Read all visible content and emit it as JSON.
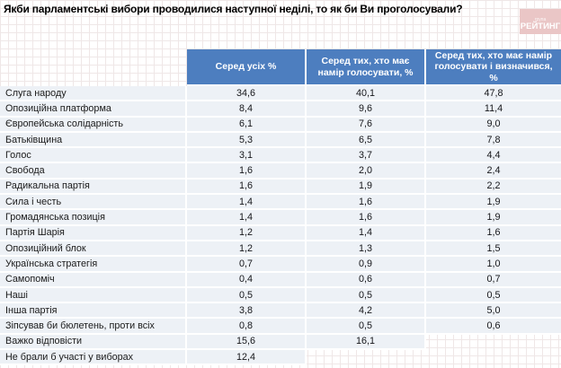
{
  "page": {
    "title": "Якби парламентські вибори проводилися наступної неділі, то як би Ви проголосували?",
    "logo": {
      "small_text": "група",
      "text": "РЕЙТИНГ"
    }
  },
  "colors": {
    "header_bg": "#4d7ebf",
    "row_bg": "#edf1f6",
    "logo_bg": "#eac6c6",
    "header_text": "#ffffff"
  },
  "chart_data": {
    "type": "table",
    "title": "Якби парламентські вибори проводилися наступної неділі, то як би Ви проголосували?",
    "columns": [
      "Серед усіх %",
      "Серед тих, хто має намір голосувати, %",
      "Серед тих, хто має намір голосувати і визначився, %"
    ],
    "rows": [
      {
        "label": "Слуга народу",
        "values": [
          "34,6",
          "40,1",
          "47,8"
        ]
      },
      {
        "label": "Опозиційна платформа",
        "values": [
          "8,4",
          "9,6",
          "11,4"
        ]
      },
      {
        "label": "Європейська солідарність",
        "values": [
          "6,1",
          "7,6",
          "9,0"
        ]
      },
      {
        "label": "Батьківщина",
        "values": [
          "5,3",
          "6,5",
          "7,8"
        ]
      },
      {
        "label": "Голос",
        "values": [
          "3,1",
          "3,7",
          "4,4"
        ]
      },
      {
        "label": "Свобода",
        "values": [
          "1,6",
          "2,0",
          "2,4"
        ]
      },
      {
        "label": "Радикальна партія",
        "values": [
          "1,6",
          "1,9",
          "2,2"
        ]
      },
      {
        "label": "Сила і честь",
        "values": [
          "1,4",
          "1,6",
          "1,9"
        ]
      },
      {
        "label": "Громадянська позиція",
        "values": [
          "1,4",
          "1,6",
          "1,9"
        ]
      },
      {
        "label": "Партія Шарія",
        "values": [
          "1,2",
          "1,4",
          "1,6"
        ]
      },
      {
        "label": "Опозиційний блок",
        "values": [
          "1,2",
          "1,3",
          "1,5"
        ]
      },
      {
        "label": "Українська стратегія",
        "values": [
          "0,7",
          "0,9",
          "1,0"
        ]
      },
      {
        "label": "Самопоміч",
        "values": [
          "0,4",
          "0,6",
          "0,7"
        ]
      },
      {
        "label": "Наші",
        "values": [
          "0,5",
          "0,5",
          "0,5"
        ]
      },
      {
        "label": "Інша партія",
        "values": [
          "3,8",
          "4,2",
          "5,0"
        ]
      },
      {
        "label": "Зіпсував би бюлетень, проти всіх",
        "values": [
          "0,8",
          "0,5",
          "0,6"
        ]
      },
      {
        "label": "Важко відповісти",
        "values": [
          "15,6",
          "16,1",
          null
        ]
      },
      {
        "label": "Не брали б участі у виборах",
        "values": [
          "12,4",
          null,
          null
        ]
      }
    ]
  }
}
